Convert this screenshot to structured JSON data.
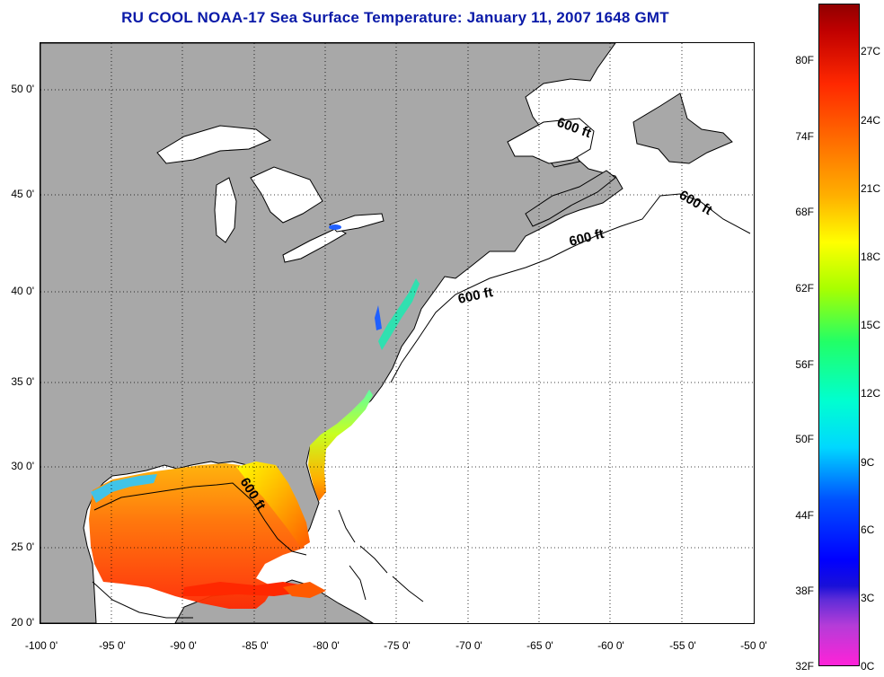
{
  "title": "RU COOL  NOAA-17  Sea Surface Temperature:  January 11, 2007 1648 GMT",
  "map": {
    "region": "Northwest Atlantic / Gulf of Mexico",
    "land_color": "#a8a8a8",
    "ocean_color": "#ffffff",
    "contour_label": "600 ft",
    "contour_labels": [
      "600 ft",
      "600 ft",
      "600 ft",
      "600 ft",
      "600 ft"
    ],
    "lat_ticks": [
      "50 0'",
      "45 0'",
      "40 0'",
      "35 0'",
      "30 0'",
      "25 0'",
      "20 0'"
    ],
    "lon_ticks": [
      "-100 0'",
      "-95 0'",
      "-90 0'",
      "-85 0'",
      "-80 0'",
      "-75 0'",
      "-70 0'",
      "-65 0'",
      "-60 0'",
      "-55 0'",
      "-50 0'"
    ]
  },
  "colorbar": {
    "fahrenheit_labels": [
      "80F",
      "74F",
      "68F",
      "62F",
      "56F",
      "50F",
      "44F",
      "38F",
      "32F"
    ],
    "celsius_labels": [
      "27C",
      "24C",
      "21C",
      "18C",
      "15C",
      "12C",
      "9C",
      "6C",
      "3C",
      "0C"
    ],
    "range_f": [
      32,
      84
    ],
    "range_c": [
      0,
      29
    ]
  }
}
